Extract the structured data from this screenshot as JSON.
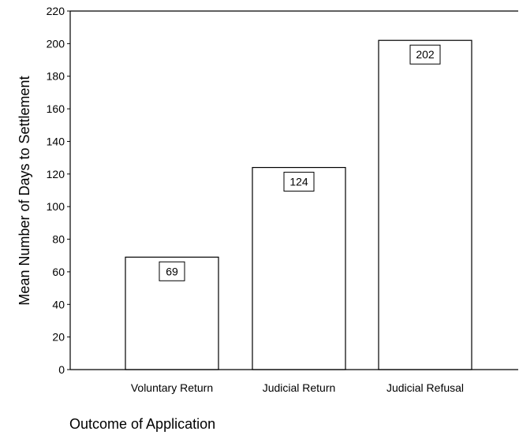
{
  "chart_data": {
    "type": "bar",
    "title": "",
    "xlabel": "Outcome of Application",
    "ylabel": "Mean Number of Days to Settlement",
    "categories": [
      "Voluntary Return",
      "Judicial Return",
      "Judicial Refusal"
    ],
    "values": [
      69,
      124,
      202
    ],
    "data_labels": [
      "69",
      "124",
      "202"
    ],
    "ylim": [
      0,
      220
    ],
    "yticks": [
      0,
      20,
      40,
      60,
      80,
      100,
      120,
      140,
      160,
      180,
      200,
      220
    ],
    "grid": false,
    "legend": "none",
    "colors": {
      "bar_fill": "#ffffff",
      "bar_stroke": "#000000",
      "axis": "#000000"
    }
  }
}
